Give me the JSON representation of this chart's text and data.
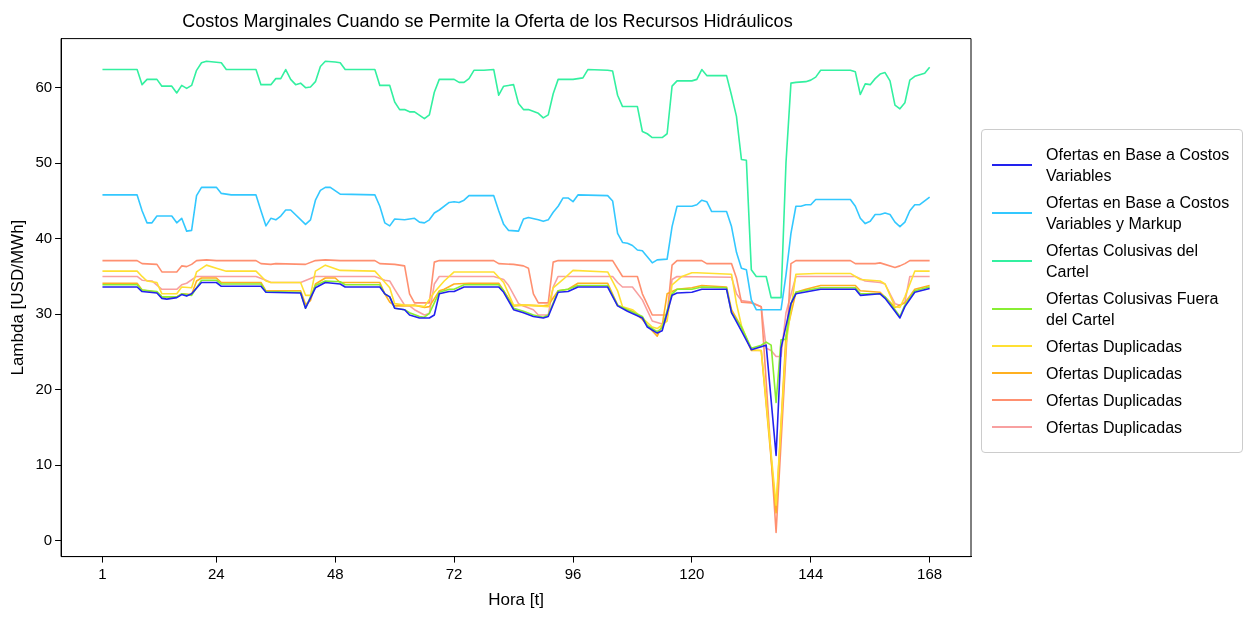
{
  "chart_data": {
    "type": "line",
    "title": "Costos Marginales Cuando se Permite la Oferta de los Recursos Hidráulicos",
    "xlabel": "Hora [t]",
    "ylabel": "Lambda [USD/MWh]",
    "xlim": [
      -7.35,
      176.35
    ],
    "ylim": [
      -2.1,
      66.5
    ],
    "xticks": [
      1,
      24,
      48,
      72,
      96,
      120,
      144,
      168
    ],
    "yticks": [
      0,
      10,
      20,
      30,
      40,
      50,
      60
    ],
    "grid": false,
    "legend": "right",
    "series": [
      {
        "name": "Ofertas en Base a Costos Variables",
        "color": "#2222ee",
        "x": [
          1,
          8,
          9,
          12,
          13,
          14,
          16,
          17,
          18,
          19,
          21,
          24,
          25,
          33,
          34,
          41,
          42,
          44,
          46,
          49,
          50,
          57,
          58,
          59,
          60,
          62,
          63,
          65,
          67,
          68,
          69,
          71,
          72,
          74,
          81,
          82,
          84,
          86,
          88,
          90,
          91,
          93,
          95,
          97,
          103,
          105,
          107,
          110,
          111,
          113,
          114,
          116,
          117,
          120,
          122,
          127,
          128,
          130,
          132,
          135,
          137,
          138,
          140,
          141,
          146,
          153,
          154,
          158,
          159,
          161,
          162,
          163,
          165,
          168
        ],
        "values": [
          33.6,
          33.6,
          33.0,
          32.8,
          32.1,
          32.0,
          32.2,
          32.6,
          32.4,
          32.7,
          34.2,
          34.2,
          33.7,
          33.7,
          32.9,
          32.8,
          30.8,
          33.5,
          34.2,
          34.0,
          33.6,
          33.6,
          32.7,
          32.3,
          30.8,
          30.6,
          29.9,
          29.5,
          29.5,
          29.9,
          32.7,
          33.0,
          33.0,
          33.6,
          33.6,
          32.9,
          30.6,
          30.2,
          29.7,
          29.5,
          29.7,
          32.9,
          33.0,
          33.6,
          33.6,
          31.1,
          30.4,
          29.5,
          28.3,
          27.5,
          27.8,
          32.5,
          32.8,
          32.9,
          33.3,
          33.3,
          30.2,
          27.8,
          25.3,
          25.9,
          11.3,
          25.5,
          31.4,
          32.7,
          33.3,
          33.3,
          32.5,
          32.7,
          32.1,
          30.4,
          29.5,
          31.0,
          32.9,
          33.4
        ]
      },
      {
        "name": "Ofertas en Base a Costos Variables y Markup",
        "color": "#33c8ff",
        "x": [
          1,
          8,
          9,
          10,
          11,
          12,
          15,
          16,
          17,
          18,
          19,
          20,
          21,
          24,
          25,
          27,
          32,
          33,
          34,
          35,
          36,
          37,
          38,
          39,
          42,
          43,
          44,
          45,
          46,
          47,
          49,
          56,
          57,
          58,
          59,
          60,
          62,
          64,
          65,
          66,
          67,
          68,
          69,
          71,
          72,
          73,
          74,
          75,
          80,
          81,
          82,
          83,
          85,
          86,
          87,
          89,
          90,
          91,
          92,
          93,
          94,
          95,
          96,
          97,
          103,
          104,
          105,
          106,
          107,
          108,
          109,
          110,
          111,
          112,
          113,
          115,
          116,
          117,
          120,
          121,
          122,
          123,
          124,
          127,
          128,
          129,
          130,
          131,
          132,
          133,
          138,
          139,
          140,
          141,
          142,
          143,
          144,
          145,
          152,
          153,
          154,
          155,
          156,
          157,
          158,
          159,
          160,
          161,
          162,
          163,
          164,
          165,
          166,
          167,
          168
        ],
        "values": [
          45.8,
          45.8,
          43.7,
          42.1,
          42.1,
          43.0,
          43.0,
          42.1,
          42.7,
          41.0,
          41.1,
          45.7,
          46.8,
          46.8,
          46.0,
          45.8,
          45.8,
          43.7,
          41.7,
          42.7,
          42.5,
          43.0,
          43.8,
          43.8,
          41.9,
          42.5,
          45.1,
          46.4,
          46.8,
          46.8,
          45.9,
          45.8,
          44.3,
          42.1,
          41.7,
          42.6,
          42.5,
          42.7,
          42.2,
          42.1,
          42.5,
          43.4,
          43.8,
          44.8,
          44.9,
          44.8,
          45.1,
          45.7,
          45.7,
          43.7,
          41.9,
          41.1,
          41.0,
          42.6,
          42.8,
          42.5,
          42.3,
          42.5,
          43.5,
          44.3,
          45.4,
          45.4,
          44.9,
          45.8,
          45.7,
          45.0,
          40.7,
          39.5,
          39.4,
          39.1,
          38.5,
          38.4,
          37.6,
          36.8,
          37.2,
          37.3,
          41.6,
          44.3,
          44.3,
          44.5,
          45.1,
          44.9,
          43.6,
          43.6,
          41.6,
          38.2,
          36.1,
          35.9,
          31.9,
          30.6,
          30.6,
          35.2,
          40.7,
          44.3,
          44.3,
          44.5,
          44.5,
          45.2,
          45.2,
          44.3,
          42.7,
          42.0,
          42.3,
          43.2,
          43.2,
          43.4,
          43.2,
          42.2,
          41.6,
          42.2,
          43.7,
          44.5,
          44.5,
          45.0,
          45.5
        ]
      },
      {
        "name": "Ofertas Colusivas del Cartel",
        "color": "#33f0a0",
        "x": [
          1,
          8,
          9,
          10,
          12,
          13,
          15,
          16,
          17,
          18,
          19,
          20,
          21,
          22,
          25,
          26,
          32,
          33,
          35,
          36,
          37,
          38,
          39,
          40,
          41,
          42,
          43,
          44,
          45,
          46,
          48,
          49,
          50,
          56,
          57,
          59,
          60,
          61,
          62,
          63,
          64,
          66,
          67,
          68,
          69,
          72,
          73,
          74,
          75,
          76,
          78,
          80,
          81,
          82,
          84,
          85,
          86,
          87,
          89,
          90,
          91,
          92,
          93,
          96,
          98,
          99,
          103,
          104,
          105,
          106,
          109,
          110,
          111,
          112,
          114,
          115,
          116,
          117,
          120,
          121,
          122,
          123,
          127,
          128,
          129,
          130,
          131,
          132,
          133,
          135,
          136,
          138,
          139,
          140,
          141,
          143,
          144,
          145,
          146,
          152,
          153,
          154,
          155,
          156,
          157,
          158,
          159,
          160,
          161,
          162,
          163,
          164,
          165,
          167,
          168
        ],
        "values": [
          62.4,
          62.4,
          60.4,
          61.1,
          61.1,
          60.2,
          60.2,
          59.3,
          60.3,
          59.9,
          60.3,
          62.3,
          63.3,
          63.5,
          63.3,
          62.4,
          62.4,
          60.4,
          60.4,
          61.2,
          61.2,
          62.4,
          61.1,
          60.4,
          60.6,
          60.0,
          60.1,
          60.8,
          62.8,
          63.5,
          63.4,
          63.3,
          62.4,
          62.4,
          60.3,
          60.3,
          58.1,
          57.1,
          57.1,
          56.8,
          56.8,
          55.9,
          56.4,
          59.4,
          61.1,
          61.1,
          60.7,
          60.7,
          61.2,
          62.3,
          62.3,
          62.4,
          59.0,
          60.2,
          60.4,
          57.9,
          57.1,
          57.1,
          56.6,
          56.0,
          56.4,
          59.2,
          61.1,
          61.1,
          61.3,
          62.4,
          62.3,
          62.2,
          59.0,
          57.5,
          57.5,
          54.2,
          53.9,
          53.4,
          53.4,
          53.9,
          60.2,
          60.9,
          60.9,
          61.1,
          62.4,
          61.6,
          61.6,
          59.0,
          56.2,
          50.5,
          50.4,
          35.9,
          35.0,
          35.0,
          32.2,
          32.2,
          50.1,
          60.6,
          60.7,
          60.8,
          61.0,
          61.4,
          62.3,
          62.3,
          62.1,
          59.1,
          60.5,
          60.4,
          61.2,
          61.8,
          62.0,
          60.9,
          57.7,
          57.2,
          58.0,
          61.0,
          61.5,
          61.9,
          62.7
        ]
      },
      {
        "name": "Ofertas Colusivas Fuera del Cartel",
        "color": "#88ee33",
        "x": [
          1,
          8,
          9,
          12,
          13,
          16,
          17,
          19,
          21,
          24,
          25,
          33,
          34,
          41,
          42,
          44,
          46,
          49,
          50,
          57,
          58,
          59,
          60,
          62,
          63,
          65,
          66,
          67,
          69,
          71,
          72,
          74,
          81,
          82,
          84,
          86,
          88,
          90,
          91,
          93,
          95,
          97,
          103,
          105,
          107,
          110,
          111,
          113,
          114,
          116,
          117,
          120,
          122,
          127,
          128,
          130,
          132,
          134,
          135,
          136,
          137,
          138,
          139,
          140,
          141,
          146,
          153,
          154,
          158,
          159,
          161,
          162,
          163,
          165,
          168
        ],
        "values": [
          33.9,
          33.9,
          33.2,
          33.0,
          32.3,
          32.3,
          32.7,
          32.5,
          34.5,
          34.5,
          34.0,
          34.0,
          33.0,
          32.9,
          30.8,
          33.8,
          34.4,
          34.3,
          33.9,
          33.9,
          32.7,
          32.3,
          30.8,
          30.6,
          30.2,
          29.7,
          29.6,
          30.1,
          32.9,
          33.3,
          33.3,
          33.9,
          33.9,
          33.1,
          30.8,
          30.4,
          29.9,
          29.6,
          29.9,
          33.1,
          33.3,
          33.8,
          33.8,
          31.2,
          30.6,
          29.7,
          28.5,
          27.7,
          28.2,
          32.7,
          33.3,
          33.3,
          33.6,
          33.5,
          30.2,
          28.3,
          25.5,
          25.9,
          26.3,
          25.9,
          18.3,
          26.6,
          26.7,
          31.4,
          32.9,
          33.5,
          33.5,
          32.7,
          32.7,
          32.3,
          30.6,
          29.7,
          31.2,
          33.1,
          33.6
        ]
      },
      {
        "name": "Ofertas Duplicadas",
        "color": "#ffe033",
        "x": [
          1,
          8,
          9,
          10,
          12,
          13,
          16,
          17,
          19,
          20,
          22,
          24,
          26,
          32,
          34,
          35,
          41,
          42,
          43,
          44,
          46,
          49,
          56,
          57,
          59,
          60,
          62,
          65,
          66,
          68,
          70,
          72,
          80,
          82,
          84,
          87,
          91,
          92,
          94,
          96,
          103,
          105,
          106,
          108,
          110,
          112,
          113,
          115,
          116,
          118,
          120,
          121,
          128,
          129,
          130,
          132,
          134,
          137,
          139,
          141,
          145,
          152,
          154,
          158,
          159,
          161,
          162,
          163,
          165,
          168
        ],
        "values": [
          35.7,
          35.7,
          35.0,
          34.4,
          34.2,
          32.7,
          32.7,
          33.6,
          33.5,
          35.6,
          36.5,
          36.1,
          35.7,
          35.7,
          34.4,
          34.2,
          34.2,
          32.5,
          32.5,
          35.7,
          36.5,
          35.8,
          35.7,
          35.0,
          33.5,
          31.4,
          31.2,
          31.1,
          31.0,
          32.9,
          34.4,
          35.6,
          35.6,
          34.2,
          31.2,
          31.2,
          31.0,
          33.5,
          34.6,
          35.8,
          35.6,
          33.1,
          31.0,
          30.6,
          29.5,
          28.3,
          28.1,
          29.1,
          33.9,
          35.0,
          35.5,
          35.5,
          35.3,
          31.4,
          28.5,
          25.3,
          25.2,
          4.7,
          26.0,
          35.3,
          35.4,
          35.4,
          34.6,
          34.4,
          34.0,
          31.0,
          30.9,
          32.3,
          35.7,
          35.7
        ]
      },
      {
        "name": "Ofertas Duplicadas",
        "color": "#ffb020",
        "x": [
          1,
          8,
          9,
          12,
          13,
          16,
          17,
          19,
          20,
          21,
          24,
          25,
          33,
          34,
          41,
          42,
          43,
          44,
          46,
          48,
          49,
          57,
          58,
          59,
          60,
          62,
          64,
          66,
          67,
          69,
          70,
          72,
          75,
          81,
          82,
          84,
          86,
          90,
          91,
          93,
          95,
          97,
          103,
          105,
          107,
          108,
          110,
          111,
          113,
          114,
          115,
          117,
          120,
          122,
          127,
          128,
          130,
          132,
          134,
          137,
          139,
          141,
          143,
          146,
          153,
          154,
          158,
          160,
          161,
          163,
          165,
          168
        ],
        "values": [
          34.1,
          34.1,
          33.2,
          32.9,
          32.3,
          32.3,
          32.7,
          32.6,
          34.4,
          34.8,
          34.8,
          34.2,
          34.2,
          33.1,
          33.1,
          31.3,
          31.8,
          34.0,
          34.8,
          34.8,
          34.2,
          34.2,
          32.7,
          31.6,
          31.1,
          31.1,
          31.2,
          30.9,
          31.0,
          33.1,
          33.3,
          34.0,
          34.1,
          34.1,
          33.1,
          31.1,
          31.2,
          31.1,
          31.2,
          33.1,
          33.3,
          34.1,
          34.1,
          31.2,
          30.6,
          30.4,
          29.3,
          28.5,
          27.1,
          28.5,
          32.7,
          33.3,
          33.5,
          33.8,
          33.6,
          30.6,
          28.3,
          25.2,
          25.2,
          3.7,
          27.2,
          32.9,
          33.3,
          33.8,
          33.8,
          33.1,
          32.9,
          31.6,
          30.9,
          31.5,
          33.3,
          33.8
        ]
      },
      {
        "name": "Ofertas Duplicadas",
        "color": "#ff9070",
        "x": [
          1,
          8,
          9,
          12,
          13,
          16,
          17,
          18,
          19,
          20,
          22,
          24,
          32,
          33,
          35,
          36,
          42,
          44,
          46,
          49,
          56,
          57,
          60,
          62,
          63,
          64,
          67,
          68,
          69,
          80,
          81,
          84,
          86,
          87,
          88,
          89,
          91,
          92,
          93,
          104,
          106,
          109,
          110,
          112,
          115,
          116,
          117,
          122,
          123,
          128,
          129,
          130,
          132,
          134,
          137,
          140,
          141,
          152,
          153,
          157,
          158,
          161,
          162,
          163,
          164,
          168
        ],
        "values": [
          37.1,
          37.1,
          36.7,
          36.6,
          35.6,
          35.6,
          36.4,
          36.3,
          36.6,
          37.1,
          37.2,
          37.1,
          37.1,
          36.7,
          36.6,
          36.7,
          36.6,
          37.1,
          37.2,
          37.1,
          37.1,
          36.7,
          36.6,
          36.4,
          32.7,
          31.5,
          31.5,
          36.9,
          37.1,
          37.1,
          36.7,
          36.6,
          36.4,
          36.1,
          32.7,
          31.5,
          31.5,
          36.9,
          37.1,
          37.1,
          35.0,
          35.0,
          32.7,
          29.9,
          29.9,
          36.5,
          37.1,
          37.1,
          36.7,
          36.7,
          34.8,
          31.6,
          31.5,
          31.0,
          1.1,
          36.7,
          37.1,
          37.1,
          36.7,
          36.7,
          36.8,
          36.2,
          36.4,
          36.7,
          37.1,
          37.1
        ]
      },
      {
        "name": "Ofertas Duplicadas",
        "color": "#f8a0a0",
        "x": [
          1,
          8,
          9,
          11,
          13,
          16,
          17,
          18,
          20,
          32,
          34,
          35,
          41,
          44,
          56,
          58,
          59,
          60,
          62,
          63,
          64,
          66,
          67,
          68,
          69,
          80,
          82,
          83,
          85,
          86,
          88,
          89,
          91,
          92,
          93,
          104,
          105,
          106,
          108,
          110,
          112,
          114,
          115,
          116,
          117,
          128,
          129,
          130,
          132,
          134,
          135,
          136,
          137,
          138,
          139,
          141,
          153,
          155,
          158,
          159,
          161,
          162,
          163,
          164,
          168
        ],
        "values": [
          35.0,
          35.0,
          34.5,
          34.4,
          33.3,
          33.3,
          33.9,
          34.1,
          35.0,
          35.0,
          34.5,
          34.2,
          34.2,
          35.0,
          35.0,
          34.5,
          34.4,
          33.3,
          31.2,
          31.1,
          30.6,
          29.9,
          30.1,
          34.0,
          35.0,
          35.0,
          34.6,
          33.8,
          31.4,
          31.1,
          30.6,
          29.9,
          29.9,
          33.6,
          35.0,
          35.0,
          34.2,
          33.6,
          33.6,
          31.9,
          29.1,
          28.7,
          29.5,
          34.6,
          35.0,
          34.9,
          32.7,
          31.8,
          31.6,
          31.0,
          25.5,
          25.2,
          24.4,
          24.4,
          30.2,
          35.0,
          35.0,
          34.4,
          34.2,
          34.0,
          31.4,
          31.2,
          31.6,
          35.0,
          35.0
        ]
      }
    ]
  }
}
